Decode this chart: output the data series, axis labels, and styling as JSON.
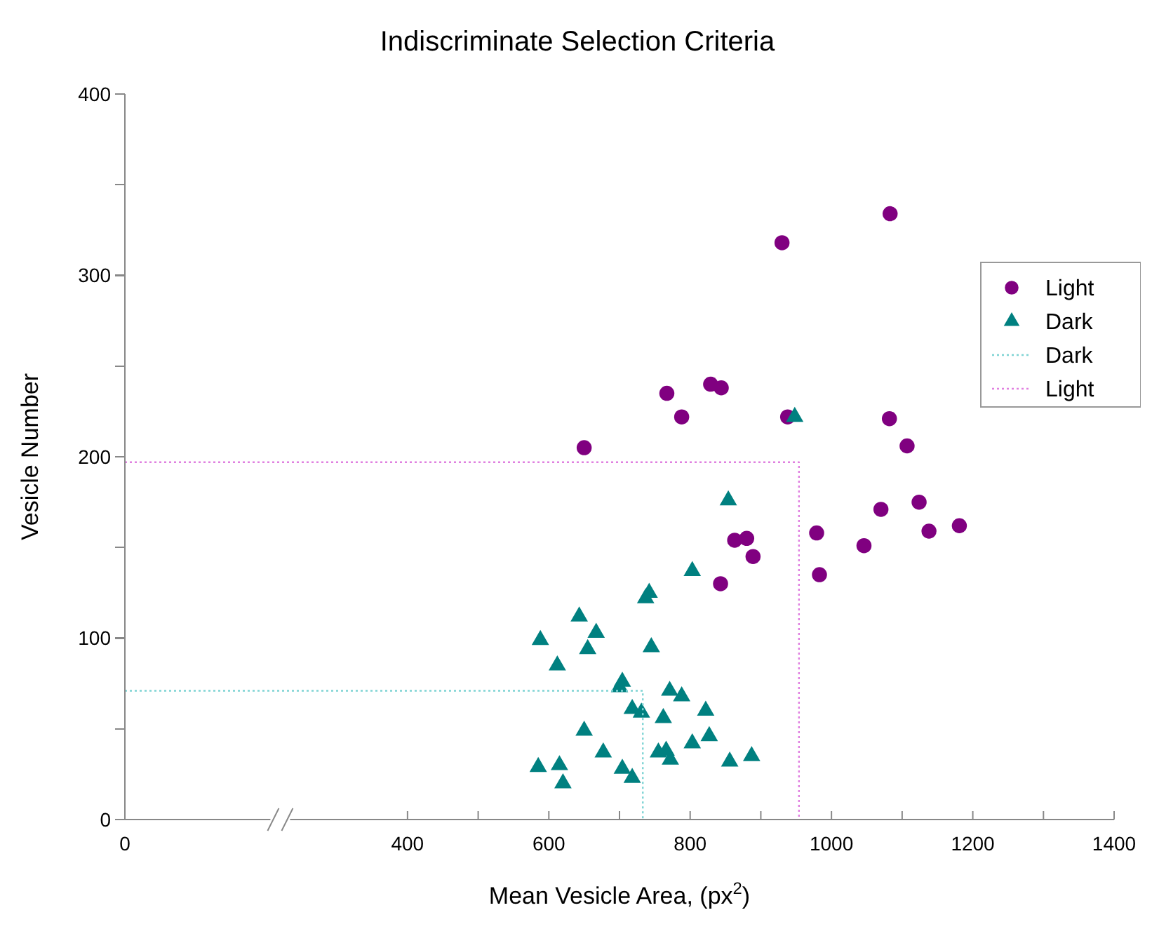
{
  "chart_data": {
    "type": "scatter",
    "title": "Indiscriminate Selection Criteria",
    "xlabel": "Mean Vesicle Area, (px$^{2}$)",
    "ylabel": "Vesicle Number",
    "xlim": [
      0,
      1400
    ],
    "xticks": [
      0,
      400,
      {
        "value": 500,
        "label": null
      },
      600,
      {
        "value": 700,
        "label": null
      },
      800,
      {
        "value": 900,
        "label": null
      },
      1000,
      {
        "value": 1100,
        "label": null
      },
      1200,
      {
        "value": 1300,
        "label": null
      },
      1400
    ],
    "ylim": [
      0,
      400
    ],
    "yticks": [
      0,
      {
        "value": 50,
        "label": null
      },
      100,
      {
        "value": 150,
        "label": null
      },
      200,
      {
        "value": 250,
        "label": null
      },
      300,
      {
        "value": 350,
        "label": null
      },
      400
    ],
    "grid": false,
    "legend": "right",
    "series": [
      {
        "name": "Light",
        "marker": "circle",
        "color": "#800080",
        "x": [
          650,
          767,
          788,
          829,
          844,
          1083,
          930,
          938,
          1082,
          1107,
          1124,
          1070,
          1181,
          1138,
          979,
          1046,
          863,
          880,
          889,
          843,
          983
        ],
        "values": [
          205,
          235,
          222,
          240,
          238,
          334,
          318,
          222,
          221,
          206,
          175,
          171,
          162,
          159,
          158,
          151,
          154,
          155,
          145,
          130,
          135
        ]
      },
      {
        "name": "Dark",
        "marker": "triangle",
        "color": "#008080",
        "x": [
          948,
          854,
          803,
          742,
          737,
          643,
          667,
          588,
          655,
          745,
          612,
          704,
          700,
          771,
          788,
          718,
          731,
          822,
          762,
          650,
          803,
          827,
          677,
          755,
          766,
          772,
          585,
          615,
          704,
          620,
          718,
          856,
          887
        ],
        "values": [
          222,
          176,
          137,
          125,
          122,
          112,
          103,
          99,
          94,
          95,
          85,
          76,
          73,
          71,
          68,
          61,
          59,
          60,
          56,
          49,
          42,
          46,
          37,
          37,
          38,
          33,
          29,
          30,
          28,
          20,
          23,
          32,
          35
        ]
      },
      {
        "name": "Dark",
        "type": "line",
        "line_style": "dotted",
        "color": "#7fd4d4",
        "x": [
          0,
          733,
          733
        ],
        "values": [
          71,
          71,
          0
        ]
      },
      {
        "name": "Light",
        "type": "line",
        "line_style": "dotted",
        "color": "#e080e0",
        "x": [
          0,
          954,
          954
        ],
        "values": [
          197,
          197,
          0
        ]
      }
    ]
  }
}
